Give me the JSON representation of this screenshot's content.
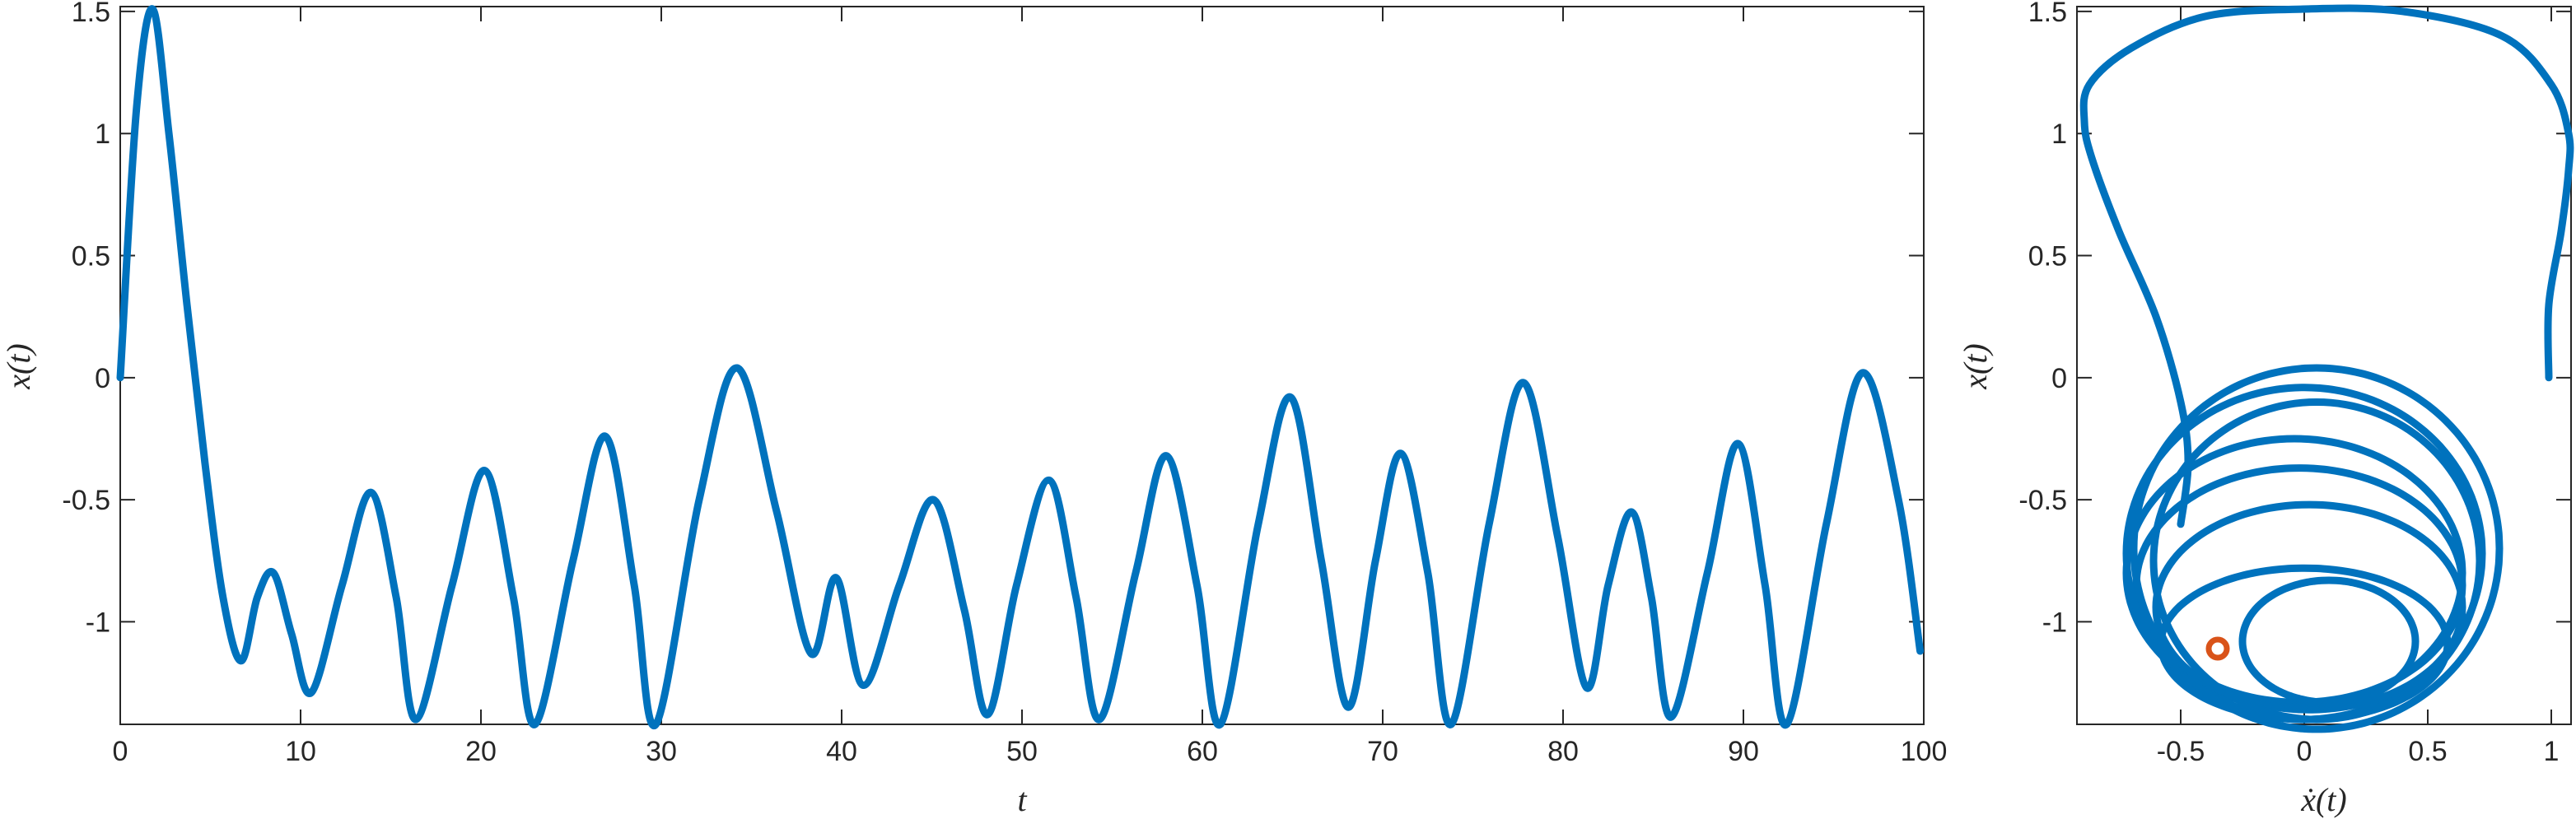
{
  "chart_data": [
    {
      "type": "line",
      "title": "",
      "xlabel": "t",
      "ylabel": "x(t)",
      "xlim": [
        0,
        100
      ],
      "ylim": [
        -1.42,
        1.52
      ],
      "xticks": [
        0,
        10,
        20,
        30,
        40,
        50,
        60,
        70,
        80,
        90,
        100
      ],
      "yticks": [
        -1,
        -0.5,
        0,
        0.5,
        1,
        1.5
      ],
      "xtick_labels": [
        "0",
        "10",
        "20",
        "30",
        "40",
        "50",
        "60",
        "70",
        "80",
        "90",
        "100"
      ],
      "ytick_labels": [
        "-1",
        "-0.5",
        "0",
        "0.5",
        "1",
        "1.5"
      ],
      "grid": false,
      "color": "#0072BD",
      "series": [
        {
          "x": [
            0,
            0.9,
            1.8,
            2.7,
            3.7,
            4.7,
            5.7,
            6.7,
            7.6,
            8.5,
            9.5,
            10.6,
            12.3,
            13.9,
            15.3,
            16.4,
            18.4,
            20.2,
            21.8,
            23.0,
            25.1,
            26.9,
            28.5,
            29.7,
            32.1,
            34.2,
            36.4,
            38.3,
            39.7,
            41.2,
            43.2,
            45.1,
            46.8,
            48.1,
            49.7,
            51.5,
            53.0,
            54.3,
            56.3,
            58.0,
            59.7,
            61.0,
            63.1,
            64.9,
            66.6,
            68.1,
            69.6,
            71.0,
            72.5,
            73.8,
            75.9,
            77.8,
            79.7,
            81.3,
            82.5,
            83.8,
            84.9,
            86.0,
            88.0,
            89.7,
            91.2,
            92.4,
            94.6,
            96.6,
            98.6,
            99.8
          ],
          "y": [
            0.0,
            1.1,
            1.51,
            1.0,
            0.3,
            -0.35,
            -0.9,
            -1.16,
            -0.9,
            -0.8,
            -1.05,
            -1.29,
            -0.85,
            -0.47,
            -0.9,
            -1.4,
            -0.85,
            -0.38,
            -0.9,
            -1.42,
            -0.75,
            -0.24,
            -0.85,
            -1.42,
            -0.5,
            0.04,
            -0.55,
            -1.13,
            -0.82,
            -1.26,
            -0.85,
            -0.5,
            -0.95,
            -1.38,
            -0.85,
            -0.42,
            -0.9,
            -1.4,
            -0.8,
            -0.32,
            -0.85,
            -1.42,
            -0.6,
            -0.08,
            -0.75,
            -1.35,
            -0.75,
            -0.31,
            -0.8,
            -1.42,
            -0.6,
            -0.02,
            -0.65,
            -1.27,
            -0.85,
            -0.55,
            -0.9,
            -1.39,
            -0.8,
            -0.27,
            -0.85,
            -1.42,
            -0.6,
            0.02,
            -0.5,
            -1.12
          ]
        }
      ]
    },
    {
      "type": "line",
      "title": "",
      "xlabel": "ẋ(t)",
      "ylabel": "x(t)",
      "xlim": [
        -0.92,
        1.08
      ],
      "ylim": [
        -1.42,
        1.52
      ],
      "xticks": [
        -0.5,
        0,
        0.5,
        1
      ],
      "yticks": [
        -1,
        -0.5,
        0,
        0.5,
        1,
        1.5
      ],
      "xtick_labels": [
        "-0.5",
        "0",
        "0.5",
        "1"
      ],
      "ytick_labels": [
        "-1",
        "-0.5",
        "0",
        "0.5",
        "1",
        "1.5"
      ],
      "grid": false,
      "color": "#0072BD",
      "series": [
        {
          "x": [
            0.99,
            0.99,
            1.04,
            1.07,
            1.07,
            1.0,
            0.8,
            0.4,
            0.0,
            -0.4,
            -0.7,
            -0.87,
            -0.89,
            -0.86,
            -0.75,
            -0.6,
            -0.5,
            -0.47,
            -0.5
          ],
          "y": [
            0.0,
            0.3,
            0.6,
            0.85,
            1.0,
            1.2,
            1.4,
            1.5,
            1.51,
            1.48,
            1.35,
            1.2,
            1.05,
            0.9,
            0.6,
            0.25,
            -0.1,
            -0.35,
            -0.6
          ]
        }
      ],
      "loops": [
        {
          "cx": 0.0,
          "cy": -1.09,
          "rx": 0.58,
          "ry": 0.31,
          "cycles": 1.0
        },
        {
          "cx": -0.02,
          "cy": -0.85,
          "rx": 0.66,
          "ry": 0.48,
          "cycles": 1.0
        },
        {
          "cx": -0.04,
          "cy": -0.8,
          "rx": 0.68,
          "ry": 0.55,
          "cycles": 1.0
        },
        {
          "cx": 0.0,
          "cy": -0.72,
          "rx": 0.72,
          "ry": 0.68,
          "cycles": 1.0
        },
        {
          "cx": 0.05,
          "cy": -0.7,
          "rx": 0.74,
          "ry": 0.74,
          "cycles": 1.0
        },
        {
          "cx": 0.02,
          "cy": -0.94,
          "rx": 0.62,
          "ry": 0.42,
          "cycles": 1.0
        },
        {
          "cx": 0.05,
          "cy": -0.75,
          "rx": 0.66,
          "ry": 0.65,
          "cycles": 1.0
        },
        {
          "cx": 0.1,
          "cy": -1.08,
          "rx": 0.35,
          "ry": 0.25,
          "cycles": 1.0
        }
      ],
      "endpoint": {
        "x": -0.35,
        "y": -1.11,
        "color": "#D95319"
      }
    }
  ]
}
